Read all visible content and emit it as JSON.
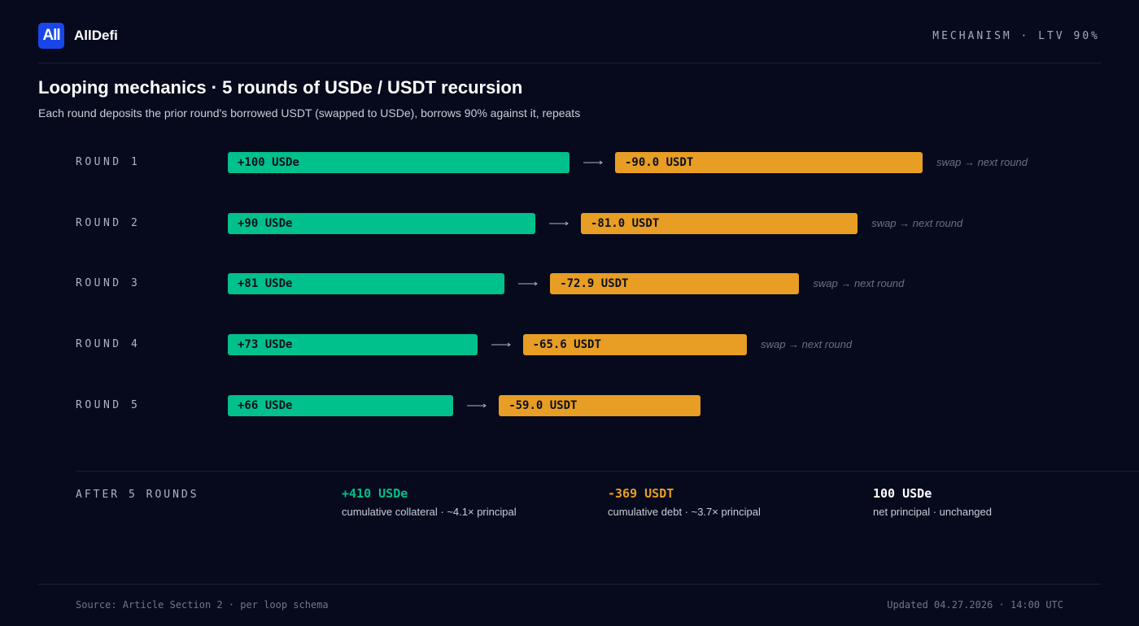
{
  "header": {
    "brand_mark": "All",
    "brand_name": "AllDefi",
    "tag": "MECHANISM · LTV 90%"
  },
  "title": "Looping mechanics · 5 rounds of USDe / USDT recursion",
  "subtitle": "Each round deposits the prior round's borrowed USDT (swapped to USDe), borrows 90% against it, repeats",
  "chart_data": {
    "type": "bar",
    "categories": [
      "ROUND 1",
      "ROUND 2",
      "ROUND 3",
      "ROUND 4",
      "ROUND 5"
    ],
    "series": [
      {
        "values": [
          100,
          90,
          81,
          73,
          66
        ],
        "labels": [
          "+100 USDe",
          "+90 USDe",
          "+81 USDe",
          "+73 USDe",
          "+66 USDe"
        ],
        "color": "#00c08b"
      },
      {
        "values": [
          90.0,
          81.0,
          72.9,
          65.6,
          59.0
        ],
        "labels": [
          "-90.0 USDT",
          "-81.0 USDT",
          "-72.9 USDT",
          "-65.6 USDT",
          "-59.0 USDT"
        ],
        "color": "#e89e24"
      }
    ],
    "annotations": [
      "swap → next round",
      "swap → next round",
      "swap → next round",
      "swap → next round",
      ""
    ]
  },
  "summary": {
    "label": "AFTER 5 ROUNDS",
    "items": [
      {
        "value": "+410 USDe",
        "desc": "cumulative collateral · ~4.1× principal",
        "color": "#00c08b"
      },
      {
        "value": "-369 USDT",
        "desc": "cumulative debt · ~3.7× principal",
        "color": "#e89e24"
      },
      {
        "value": "100 USDe",
        "desc": "net principal · unchanged",
        "color": "#ffffff"
      }
    ]
  },
  "footer": {
    "source": "Source: Article Section 2 · per loop schema",
    "updated": "Updated 04.27.2026 · 14:00 UTC"
  }
}
